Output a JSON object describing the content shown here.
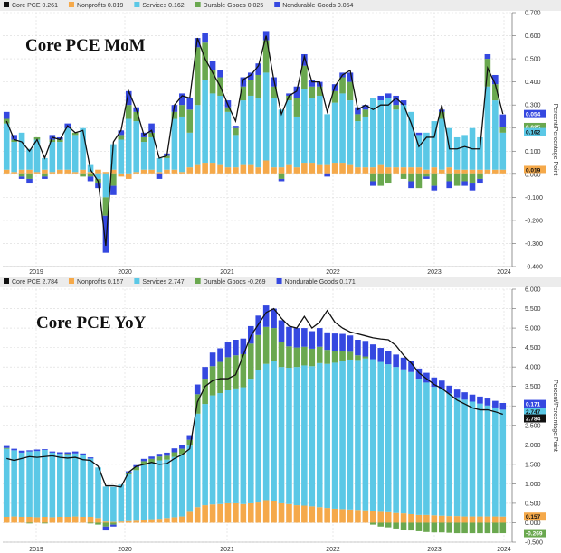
{
  "chart_data": [
    {
      "type": "bar",
      "title": "Core PCE MoM",
      "ylabel": "Percent/Percentage Point",
      "ylim": [
        -0.4,
        0.7
      ],
      "yticks": [
        "0.700",
        "0.600",
        "0.500",
        "0.400",
        "0.300",
        "0.200",
        "0.100",
        "0.000",
        "-0.100",
        "-0.200",
        "-0.300",
        "-0.400"
      ],
      "ytick_values": [
        0.7,
        0.6,
        0.5,
        0.4,
        0.3,
        0.2,
        0.1,
        0.0,
        -0.1,
        -0.2,
        -0.3,
        -0.4
      ],
      "xticks": [
        "2019",
        "2020",
        "2021",
        "2022",
        "2023",
        "2024"
      ],
      "grid": true,
      "legend": {
        "placement": "top-left",
        "entries": [
          {
            "label": "Core PCE",
            "value": "0.261",
            "color": "#111111"
          },
          {
            "label": "Nonprofits",
            "value": "0.019",
            "color": "#f5a94a"
          },
          {
            "label": "Services",
            "value": "0.162",
            "color": "#5bc8e6"
          },
          {
            "label": "Durable Goods",
            "value": "0.025",
            "color": "#6aa84f"
          },
          {
            "label": "Nondurable Goods",
            "value": "0.054",
            "color": "#3548e0"
          }
        ]
      },
      "badges": [
        {
          "value": "0.054",
          "y": 0.261,
          "color": "#3548e0",
          "text_color": "#ffffff"
        },
        {
          "value": "0.025",
          "y": 0.205,
          "color": "#6aa84f",
          "text_color": "#ffffff"
        },
        {
          "value": "0.162",
          "y": 0.183,
          "color": "#5bc8e6",
          "text_color": "#111111"
        },
        {
          "value": "0.019",
          "y": 0.019,
          "color": "#f5a94a",
          "text_color": "#111111"
        }
      ],
      "series": [
        {
          "name": "Nonprofits",
          "color": "#f5a94a",
          "values": [
            0.02,
            0.01,
            0.02,
            0.02,
            0.01,
            0.02,
            0.01,
            0.02,
            0.02,
            0.01,
            0.02,
            0.01,
            0.02,
            0.01,
            0.02,
            -0.01,
            -0.02,
            0.01,
            0.02,
            0.02,
            0.01,
            0.02,
            0.02,
            0.01,
            0.03,
            0.04,
            0.05,
            0.05,
            0.04,
            0.03,
            0.03,
            0.04,
            0.04,
            0.03,
            0.06,
            0.03,
            0.03,
            0.04,
            0.03,
            0.05,
            0.05,
            0.04,
            0.04,
            0.05,
            0.05,
            0.04,
            0.03,
            0.03,
            0.03,
            0.04,
            0.03,
            0.03,
            0.03,
            0.03,
            0.03,
            0.02,
            0.03,
            0.02,
            0.03,
            0.02,
            0.02,
            0.02,
            0.02,
            0.02,
            0.02,
            0.02
          ]
        },
        {
          "name": "Services",
          "color": "#5bc8e6",
          "values": [
            0.2,
            0.13,
            0.16,
            0.09,
            0.14,
            0.05,
            0.13,
            0.12,
            0.18,
            0.16,
            0.18,
            0.03,
            -0.02,
            -0.1,
            0.11,
            0.15,
            0.24,
            0.22,
            0.12,
            0.14,
            0.06,
            0.05,
            0.22,
            0.24,
            0.15,
            0.26,
            0.36,
            0.3,
            0.3,
            0.24,
            0.14,
            0.28,
            0.3,
            0.3,
            0.38,
            0.3,
            0.25,
            0.28,
            0.22,
            0.32,
            0.28,
            0.3,
            0.22,
            0.26,
            0.3,
            0.28,
            0.2,
            0.22,
            0.3,
            0.28,
            0.3,
            0.25,
            0.27,
            0.24,
            0.14,
            0.16,
            0.2,
            0.22,
            0.17,
            0.14,
            0.15,
            0.18,
            0.14,
            0.36,
            0.3,
            0.16
          ]
        },
        {
          "name": "Durable Goods",
          "color": "#6aa84f",
          "values": [
            0.02,
            0.01,
            -0.01,
            -0.02,
            0.01,
            -0.01,
            0.01,
            0.01,
            0.0,
            0.01,
            -0.01,
            -0.01,
            -0.02,
            -0.08,
            -0.05,
            0.02,
            0.06,
            0.04,
            0.02,
            0.02,
            0.0,
            0.01,
            0.03,
            0.05,
            0.1,
            0.25,
            0.16,
            0.1,
            0.08,
            0.02,
            0.03,
            0.06,
            0.07,
            0.1,
            0.14,
            0.05,
            -0.02,
            0.02,
            0.08,
            0.1,
            0.05,
            0.04,
            0.0,
            0.05,
            0.07,
            0.08,
            0.03,
            0.03,
            -0.03,
            -0.05,
            -0.04,
            0.02,
            -0.02,
            -0.03,
            -0.06,
            -0.01,
            -0.05,
            0.03,
            -0.03,
            -0.05,
            -0.03,
            -0.04,
            -0.02,
            0.12,
            0.07,
            0.025
          ]
        },
        {
          "name": "Nondurable Goods",
          "color": "#3548e0",
          "values": [
            0.03,
            0.02,
            -0.01,
            -0.02,
            0.0,
            -0.01,
            0.02,
            0.01,
            0.02,
            0.0,
            0.0,
            -0.02,
            -0.02,
            -0.16,
            -0.04,
            0.02,
            0.06,
            0.02,
            0.02,
            0.04,
            -0.02,
            0.01,
            0.03,
            0.05,
            0.05,
            0.04,
            0.04,
            0.04,
            0.03,
            0.03,
            0.01,
            0.04,
            0.03,
            0.05,
            0.04,
            0.04,
            -0.01,
            0.01,
            0.05,
            0.05,
            0.03,
            0.02,
            -0.01,
            0.03,
            0.02,
            0.04,
            0.03,
            0.02,
            -0.02,
            0.02,
            0.02,
            0.04,
            0.02,
            -0.03,
            0.01,
            -0.01,
            -0.02,
            0.01,
            -0.03,
            0.0,
            -0.02,
            -0.03,
            -0.02,
            0.02,
            0.04,
            0.054
          ]
        }
      ],
      "line": {
        "name": "Core PCE",
        "color": "#111111",
        "values": [
          0.23,
          0.15,
          0.14,
          0.1,
          0.15,
          0.07,
          0.16,
          0.15,
          0.21,
          0.18,
          0.19,
          0.02,
          -0.03,
          -0.31,
          0.14,
          0.19,
          0.36,
          0.28,
          0.17,
          0.19,
          0.07,
          0.08,
          0.3,
          0.34,
          0.33,
          0.59,
          0.5,
          0.44,
          0.38,
          0.3,
          0.23,
          0.41,
          0.43,
          0.47,
          0.6,
          0.41,
          0.26,
          0.34,
          0.36,
          0.51,
          0.4,
          0.4,
          0.27,
          0.38,
          0.43,
          0.45,
          0.28,
          0.3,
          0.28,
          0.3,
          0.3,
          0.33,
          0.3,
          0.22,
          0.12,
          0.16,
          0.16,
          0.3,
          0.11,
          0.11,
          0.12,
          0.11,
          0.11,
          0.46,
          0.39,
          0.261
        ]
      }
    },
    {
      "type": "bar",
      "title": "Core PCE YoY",
      "ylabel": "Percent/Percentage Point",
      "ylim": [
        -0.5,
        6.0
      ],
      "yticks": [
        "6.000",
        "5.500",
        "5.000",
        "4.500",
        "4.000",
        "3.500",
        "3.000",
        "2.500",
        "2.000",
        "1.500",
        "1.000",
        "0.500",
        "0.000",
        "-0.500"
      ],
      "ytick_values": [
        6.0,
        5.5,
        5.0,
        4.5,
        4.0,
        3.5,
        3.0,
        2.5,
        2.0,
        1.5,
        1.0,
        0.5,
        0.0,
        -0.5
      ],
      "xticks": [
        "2019",
        "2020",
        "2021",
        "2022",
        "2023",
        "2024"
      ],
      "grid": true,
      "legend": {
        "placement": "top-left",
        "entries": [
          {
            "label": "Core PCE",
            "value": "2.784",
            "color": "#111111"
          },
          {
            "label": "Nonprofits",
            "value": "0.157",
            "color": "#f5a94a"
          },
          {
            "label": "Services",
            "value": "2.747",
            "color": "#5bc8e6"
          },
          {
            "label": "Durable Goods",
            "value": "-0.269",
            "color": "#6aa84f"
          },
          {
            "label": "Nondurable Goods",
            "value": "0.171",
            "color": "#3548e0"
          }
        ]
      },
      "badges": [
        {
          "value": "0.171",
          "y": 3.05,
          "color": "#3548e0",
          "text_color": "#ffffff"
        },
        {
          "value": "2.747",
          "y": 2.85,
          "color": "#5bc8e6",
          "text_color": "#111111"
        },
        {
          "value": "2.784",
          "y": 2.68,
          "color": "#111111",
          "text_color": "#ffffff"
        },
        {
          "value": "0.157",
          "y": 0.157,
          "color": "#f5a94a",
          "text_color": "#111111"
        },
        {
          "value": "-0.269",
          "y": -0.269,
          "color": "#6aa84f",
          "text_color": "#ffffff"
        }
      ],
      "series": [
        {
          "name": "Nonprofits",
          "color": "#f5a94a",
          "values": [
            0.15,
            0.16,
            0.15,
            0.15,
            0.14,
            0.15,
            0.14,
            0.15,
            0.15,
            0.16,
            0.15,
            0.15,
            0.12,
            0.03,
            0.02,
            0.03,
            0.04,
            0.05,
            0.08,
            0.09,
            0.1,
            0.12,
            0.14,
            0.16,
            0.28,
            0.4,
            0.45,
            0.47,
            0.48,
            0.5,
            0.5,
            0.48,
            0.5,
            0.52,
            0.58,
            0.55,
            0.5,
            0.48,
            0.45,
            0.44,
            0.42,
            0.4,
            0.38,
            0.36,
            0.35,
            0.34,
            0.33,
            0.32,
            0.3,
            0.28,
            0.27,
            0.25,
            0.24,
            0.22,
            0.2,
            0.2,
            0.19,
            0.18,
            0.17,
            0.17,
            0.16,
            0.16,
            0.16,
            0.16,
            0.16,
            0.157
          ]
        },
        {
          "name": "Services",
          "color": "#5bc8e6",
          "values": [
            1.75,
            1.7,
            1.65,
            1.68,
            1.7,
            1.72,
            1.66,
            1.62,
            1.6,
            1.62,
            1.58,
            1.5,
            1.3,
            0.9,
            0.9,
            0.95,
            1.2,
            1.3,
            1.4,
            1.45,
            1.5,
            1.5,
            1.55,
            1.6,
            1.7,
            2.4,
            2.6,
            2.8,
            2.85,
            2.9,
            2.95,
            3.0,
            3.2,
            3.4,
            3.5,
            3.6,
            3.5,
            3.5,
            3.55,
            3.6,
            3.6,
            3.7,
            3.7,
            3.75,
            3.8,
            3.85,
            3.85,
            3.9,
            3.9,
            3.85,
            3.8,
            3.75,
            3.7,
            3.65,
            3.5,
            3.4,
            3.3,
            3.25,
            3.15,
            3.05,
            3.0,
            2.95,
            2.9,
            2.85,
            2.8,
            2.747
          ]
        },
        {
          "name": "Durable Goods",
          "color": "#6aa84f",
          "values": [
            0.02,
            0.0,
            0.0,
            -0.02,
            0.0,
            -0.02,
            0.0,
            0.0,
            0.02,
            0.0,
            0.0,
            -0.02,
            -0.05,
            -0.1,
            -0.05,
            0.0,
            0.05,
            0.08,
            0.1,
            0.1,
            0.1,
            0.1,
            0.12,
            0.14,
            0.15,
            0.5,
            0.65,
            0.75,
            0.8,
            0.85,
            0.85,
            0.85,
            0.9,
            0.9,
            0.95,
            0.85,
            0.65,
            0.55,
            0.5,
            0.48,
            0.45,
            0.42,
            0.36,
            0.3,
            0.25,
            0.2,
            0.12,
            0.05,
            -0.05,
            -0.1,
            -0.12,
            -0.15,
            -0.18,
            -0.2,
            -0.22,
            -0.24,
            -0.25,
            -0.25,
            -0.26,
            -0.27,
            -0.27,
            -0.27,
            -0.27,
            -0.27,
            -0.27,
            -0.269
          ]
        },
        {
          "name": "Nondurable Goods",
          "color": "#3548e0",
          "values": [
            0.05,
            0.04,
            0.05,
            0.03,
            0.04,
            0.02,
            0.03,
            0.04,
            0.04,
            0.05,
            0.05,
            0.03,
            0.0,
            -0.1,
            -0.05,
            0.0,
            0.03,
            0.05,
            0.06,
            0.06,
            0.07,
            0.08,
            0.1,
            0.1,
            0.12,
            0.25,
            0.3,
            0.35,
            0.35,
            0.38,
            0.4,
            0.4,
            0.45,
            0.5,
            0.55,
            0.5,
            0.55,
            0.5,
            0.5,
            0.48,
            0.45,
            0.48,
            0.45,
            0.45,
            0.45,
            0.42,
            0.4,
            0.4,
            0.38,
            0.36,
            0.34,
            0.32,
            0.3,
            0.28,
            0.26,
            0.25,
            0.24,
            0.22,
            0.2,
            0.2,
            0.19,
            0.18,
            0.18,
            0.18,
            0.17,
            0.171
          ]
        }
      ],
      "line": {
        "name": "Core PCE",
        "color": "#111111",
        "values": [
          1.65,
          1.6,
          1.65,
          1.7,
          1.68,
          1.7,
          1.72,
          1.68,
          1.66,
          1.68,
          1.62,
          1.6,
          1.45,
          0.95,
          0.95,
          0.92,
          1.3,
          1.45,
          1.5,
          1.55,
          1.5,
          1.52,
          1.65,
          1.75,
          1.9,
          3.1,
          3.5,
          3.65,
          3.7,
          3.7,
          3.8,
          4.3,
          4.8,
          5.1,
          5.4,
          5.5,
          5.25,
          5.05,
          5.0,
          5.3,
          5.0,
          5.15,
          5.45,
          5.15,
          5.0,
          4.9,
          4.85,
          4.8,
          4.75,
          4.72,
          4.7,
          4.55,
          4.3,
          4.1,
          3.85,
          3.7,
          3.55,
          3.45,
          3.3,
          3.15,
          3.05,
          2.95,
          2.9,
          2.9,
          2.85,
          2.784
        ]
      }
    }
  ]
}
